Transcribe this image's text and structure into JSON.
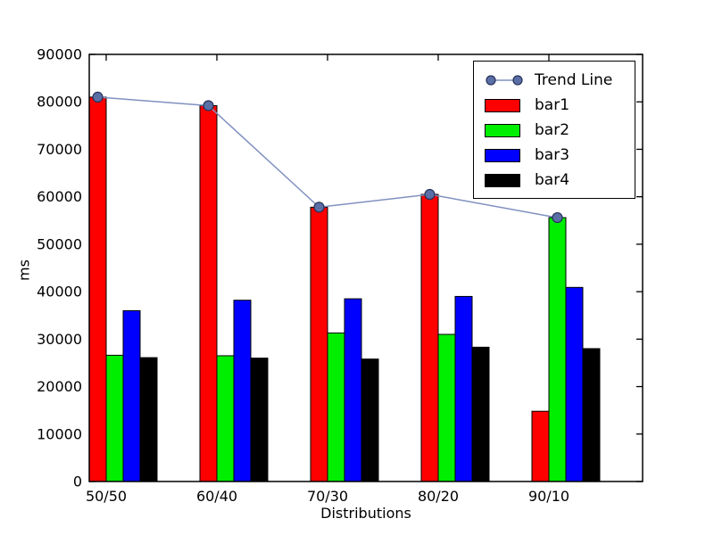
{
  "figure": {
    "background": "#ffffff"
  },
  "axes": {
    "xlabel": "Distributions",
    "ylabel": "ms",
    "yticks": [
      0,
      10000,
      20000,
      30000,
      40000,
      50000,
      60000,
      70000,
      80000,
      90000
    ],
    "xticklabels": [
      "50/50",
      "60/40",
      "70/30",
      "80/20",
      "90/10"
    ]
  },
  "legend": {
    "items": [
      {
        "label": "Trend Line",
        "type": "line",
        "color": "#8091c1",
        "marker_fill": "#5a6fa5",
        "marker_edge": "#27325a"
      },
      {
        "label": "bar1",
        "type": "patch",
        "color": "#ff0000"
      },
      {
        "label": "bar2",
        "type": "patch",
        "color": "#00ee00"
      },
      {
        "label": "bar3",
        "type": "patch",
        "color": "#0000ff"
      },
      {
        "label": "bar4",
        "type": "patch",
        "color": "#000000"
      }
    ]
  },
  "chart_data": {
    "type": "bar",
    "title": "",
    "xlabel": "Distributions",
    "ylabel": "ms",
    "ylim": [
      0,
      90000
    ],
    "ytick_step": 10000,
    "grid": false,
    "legend_position": "upper right",
    "categories": [
      "50/50",
      "60/40",
      "70/30",
      "80/20",
      "90/10"
    ],
    "series": [
      {
        "name": "bar1",
        "color": "#ff0000",
        "values": [
          81000,
          79200,
          57800,
          60500,
          14800
        ]
      },
      {
        "name": "bar2",
        "color": "#00ee00",
        "values": [
          26600,
          26500,
          31300,
          31000,
          55600
        ]
      },
      {
        "name": "bar3",
        "color": "#0000ff",
        "values": [
          36000,
          38200,
          38500,
          39000,
          40900
        ]
      },
      {
        "name": "bar4",
        "color": "#000000",
        "values": [
          26100,
          26000,
          25800,
          28300,
          28000
        ]
      }
    ],
    "trend": {
      "name": "Trend Line",
      "values": [
        81000,
        79200,
        57800,
        60500,
        55600
      ],
      "note": "follows the tallest bar of each group",
      "line_color": "#8091c1",
      "marker_fill": "#5a6fa5",
      "marker_edge": "#27325a"
    }
  }
}
